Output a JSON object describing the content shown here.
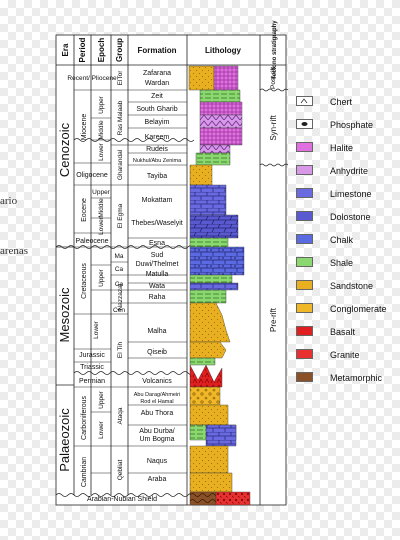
{
  "side_fragments": [
    "ario",
    "arenas"
  ],
  "headers": {
    "era": "Era",
    "period": "Period",
    "epoch": "Epoch",
    "group": "Group",
    "formation": "Formation",
    "lithology": "Lithology",
    "tectono_stratigraphy": "Tectono stratigraphy"
  },
  "eras": [
    {
      "label": "Cenozoic"
    },
    {
      "label": "Mesozoic"
    },
    {
      "label": "Palaeozoic"
    }
  ],
  "periods": [
    {
      "label": "Recent/ Pliocene"
    },
    {
      "label": "Miocene"
    },
    {
      "label": "Oligocene"
    },
    {
      "label": "Eocene"
    },
    {
      "label": "Paleocene"
    },
    {
      "label": "Cretaceous"
    },
    {
      "label": "Jurassic"
    },
    {
      "label": "Triassic"
    },
    {
      "label": "Permian"
    },
    {
      "label": "Carboniferous"
    },
    {
      "label": "Cambrian"
    }
  ],
  "epochs": [
    {
      "label": "Upper"
    },
    {
      "label": "Middle"
    },
    {
      "label": "Lower"
    },
    {
      "label": "Upper"
    },
    {
      "label": "Middle"
    },
    {
      "label": "Lower"
    },
    {
      "label": "Upper"
    },
    {
      "label": "Lower"
    },
    {
      "label": "Upper"
    },
    {
      "label": "Lower"
    }
  ],
  "groups": [
    {
      "label": "ElTor"
    },
    {
      "label": "Ras Malaab"
    },
    {
      "label": "Gharandal"
    },
    {
      "label": "El Egma"
    },
    {
      "label": "Ma"
    },
    {
      "label": "Ca"
    },
    {
      "label": "Ca"
    },
    {
      "label": "Nazzazat"
    },
    {
      "label": "Cen"
    },
    {
      "label": "El Tih"
    },
    {
      "label": "Ataqa"
    },
    {
      "label": "Qebliat"
    }
  ],
  "formations": [
    {
      "label": "Zafarana"
    },
    {
      "label": "Wardan"
    },
    {
      "label": "Zeit"
    },
    {
      "label": "South Gharib"
    },
    {
      "label": "Belayim"
    },
    {
      "label": "Kareem"
    },
    {
      "label": "Rudeis"
    },
    {
      "label": "Nukhul/Abu Zenima"
    },
    {
      "label": "Tayiba"
    },
    {
      "label": "Mokattam"
    },
    {
      "label": "Thebes/Waselyit"
    },
    {
      "label": "Esna"
    },
    {
      "label": "Sud"
    },
    {
      "label": "Duwi/Thelmet"
    },
    {
      "label": "Matulla"
    },
    {
      "label": "Wata"
    },
    {
      "label": "Raha"
    },
    {
      "label": "Malha"
    },
    {
      "label": "Qiseib"
    },
    {
      "label": "Volcanics"
    },
    {
      "label": "Abu Darag/Ahmeiri"
    },
    {
      "label": "Rod el Hamal"
    },
    {
      "label": "Abu Thora"
    },
    {
      "label": "Abu Durba/"
    },
    {
      "label": "Um Bogma"
    },
    {
      "label": "Naqus"
    },
    {
      "label": "Araba"
    },
    {
      "label": "Arabian-Nubian Shield"
    }
  ],
  "tectono": [
    {
      "label": "Post rift"
    },
    {
      "label": "Syn-rift"
    },
    {
      "label": "Pre-rift"
    }
  ],
  "legend": [
    {
      "label": "Chert",
      "color": "#ffffff",
      "pattern": "chert"
    },
    {
      "label": "Phosphate",
      "color": "#ffffff",
      "pattern": "phosphate"
    },
    {
      "label": "Halite",
      "color": "#e070e0",
      "pattern": "halite"
    },
    {
      "label": "Anhydrite",
      "color": "#d898e8",
      "pattern": "anhydrite"
    },
    {
      "label": "Limestone",
      "color": "#6a6ae0",
      "pattern": "limestone"
    },
    {
      "label": "Dolostone",
      "color": "#5a5ad0",
      "pattern": "dolostone"
    },
    {
      "label": "Chalk",
      "color": "#5a6ae0",
      "pattern": "chalk"
    },
    {
      "label": "Shale",
      "color": "#8cd870",
      "pattern": "shale"
    },
    {
      "label": "Sandstone",
      "color": "#e8b020",
      "pattern": "sandstone"
    },
    {
      "label": "Conglomerate",
      "color": "#f0b828",
      "pattern": "conglomerate"
    },
    {
      "label": "Basalt",
      "color": "#e02020",
      "pattern": "basalt"
    },
    {
      "label": "Granite",
      "color": "#e83030",
      "pattern": "granite"
    },
    {
      "label": "Metamorphic",
      "color": "#8a5028",
      "pattern": "metamorphic"
    }
  ]
}
